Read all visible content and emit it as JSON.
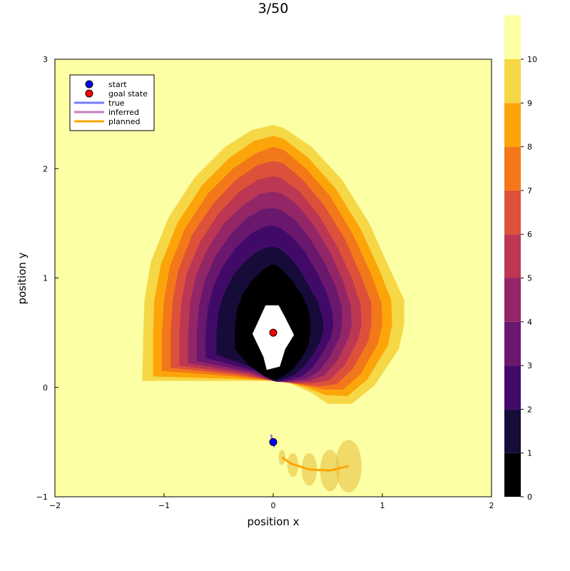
{
  "chart_data": {
    "type": "contour",
    "title": "3/50",
    "xlabel": "position x",
    "ylabel": "position y",
    "xlim": [
      -2,
      2
    ],
    "ylim": [
      -1,
      3
    ],
    "x_ticks": [
      -2,
      -1,
      0,
      1,
      2
    ],
    "y_ticks": [
      -1,
      0,
      1,
      2,
      3
    ],
    "x_tick_labels": [
      "−2",
      "−1",
      "0",
      "1",
      "2"
    ],
    "y_tick_labels": [
      "−1",
      "0",
      "1",
      "2",
      "3"
    ],
    "grid": false,
    "legend_position": "top-left",
    "legend": [
      {
        "label": "start",
        "kind": "marker",
        "color": "#0000ff"
      },
      {
        "label": "goal state",
        "kind": "marker",
        "color": "#ff0000"
      },
      {
        "label": "true",
        "kind": "line",
        "color": "#7a7aff"
      },
      {
        "label": "inferred",
        "kind": "line",
        "color": "#c080c0"
      },
      {
        "label": "planned",
        "kind": "line",
        "color": "#ffa500"
      }
    ],
    "colorbar": {
      "range": [
        0,
        10
      ],
      "ticks": [
        0,
        1,
        2,
        3,
        4,
        5,
        6,
        7,
        8,
        9,
        10
      ],
      "colors": [
        "#000000",
        "#160b39",
        "#420a68",
        "#6a176e",
        "#932667",
        "#bc3754",
        "#dd513a",
        "#f37819",
        "#fca50a",
        "#f6d746",
        "#fcffa4"
      ]
    },
    "start": {
      "x": 0.0,
      "y": -0.5
    },
    "goal_state": {
      "x": 0.0,
      "y": 0.5
    },
    "true_path": [
      {
        "x": -0.02,
        "y": -0.44
      },
      {
        "x": 0.0,
        "y": -0.5
      },
      {
        "x": 0.01,
        "y": -0.55
      }
    ],
    "inferred_path": [
      {
        "x": -0.02,
        "y": -0.43
      },
      {
        "x": -0.01,
        "y": -0.48
      },
      {
        "x": 0.0,
        "y": -0.53
      }
    ],
    "planned_path": [
      {
        "x": 0.08,
        "y": -0.64
      },
      {
        "x": 0.17,
        "y": -0.7
      },
      {
        "x": 0.33,
        "y": -0.75
      },
      {
        "x": 0.52,
        "y": -0.76
      },
      {
        "x": 0.69,
        "y": -0.72
      }
    ],
    "uncertainty_ellipses": [
      {
        "x": 0.08,
        "y": -0.64,
        "rx": 0.03,
        "ry": 0.07
      },
      {
        "x": 0.18,
        "y": -0.71,
        "rx": 0.05,
        "ry": 0.11
      },
      {
        "x": 0.33,
        "y": -0.75,
        "rx": 0.07,
        "ry": 0.15
      },
      {
        "x": 0.52,
        "y": -0.76,
        "rx": 0.09,
        "ry": 0.19
      },
      {
        "x": 0.69,
        "y": -0.72,
        "rx": 0.12,
        "ry": 0.24
      }
    ],
    "contour_levels": [
      {
        "level": 9,
        "color": "#f6d746",
        "points": [
          [
            -1.2,
            0.06
          ],
          [
            -1.19,
            0.48
          ],
          [
            -1.18,
            0.8
          ],
          [
            -1.12,
            1.15
          ],
          [
            -0.96,
            1.55
          ],
          [
            -0.72,
            1.92
          ],
          [
            -0.44,
            2.2
          ],
          [
            -0.2,
            2.35
          ],
          [
            0.0,
            2.4
          ],
          [
            0.1,
            2.37
          ],
          [
            0.35,
            2.2
          ],
          [
            0.63,
            1.9
          ],
          [
            0.88,
            1.5
          ],
          [
            1.06,
            1.1
          ],
          [
            1.2,
            0.8
          ],
          [
            1.2,
            0.58
          ],
          [
            1.15,
            0.35
          ],
          [
            0.93,
            0.02
          ],
          [
            0.72,
            -0.15
          ],
          [
            0.5,
            -0.15
          ],
          [
            0.35,
            -0.05
          ],
          [
            0.15,
            0.04
          ],
          [
            0.0,
            0.06
          ],
          [
            -0.5,
            0.06
          ]
        ]
      },
      {
        "level": 8,
        "color": "#fca50a",
        "points": [
          [
            -1.1,
            0.1
          ],
          [
            -1.1,
            0.5
          ],
          [
            -1.09,
            0.8
          ],
          [
            -1.03,
            1.12
          ],
          [
            -0.88,
            1.5
          ],
          [
            -0.65,
            1.85
          ],
          [
            -0.4,
            2.1
          ],
          [
            -0.18,
            2.25
          ],
          [
            0.0,
            2.3
          ],
          [
            0.1,
            2.27
          ],
          [
            0.32,
            2.1
          ],
          [
            0.57,
            1.82
          ],
          [
            0.8,
            1.45
          ],
          [
            0.97,
            1.08
          ],
          [
            1.08,
            0.8
          ],
          [
            1.09,
            0.58
          ],
          [
            1.05,
            0.38
          ],
          [
            0.86,
            0.07
          ],
          [
            0.68,
            -0.08
          ],
          [
            0.48,
            -0.07
          ],
          [
            0.3,
            0.0
          ],
          [
            0.12,
            0.05
          ],
          [
            0.0,
            0.06
          ],
          [
            -0.4,
            0.08
          ]
        ]
      },
      {
        "level": 7,
        "color": "#f37819",
        "points": [
          [
            -1.02,
            0.15
          ],
          [
            -1.02,
            0.5
          ],
          [
            -1.0,
            0.8
          ],
          [
            -0.95,
            1.1
          ],
          [
            -0.81,
            1.45
          ],
          [
            -0.6,
            1.77
          ],
          [
            -0.37,
            2.0
          ],
          [
            -0.16,
            2.14
          ],
          [
            0.0,
            2.2
          ],
          [
            0.1,
            2.17
          ],
          [
            0.3,
            2.0
          ],
          [
            0.52,
            1.75
          ],
          [
            0.73,
            1.4
          ],
          [
            0.89,
            1.05
          ],
          [
            0.99,
            0.78
          ],
          [
            1.0,
            0.58
          ],
          [
            0.96,
            0.4
          ],
          [
            0.8,
            0.12
          ],
          [
            0.64,
            -0.02
          ],
          [
            0.46,
            -0.02
          ],
          [
            0.28,
            0.02
          ],
          [
            0.1,
            0.05
          ],
          [
            0.0,
            0.06
          ],
          [
            -0.35,
            0.1
          ]
        ]
      },
      {
        "level": 6,
        "color": "#dd513a",
        "points": [
          [
            -0.94,
            0.18
          ],
          [
            -0.94,
            0.5
          ],
          [
            -0.92,
            0.8
          ],
          [
            -0.87,
            1.07
          ],
          [
            -0.74,
            1.4
          ],
          [
            -0.55,
            1.68
          ],
          [
            -0.34,
            1.9
          ],
          [
            -0.15,
            2.03
          ],
          [
            0.0,
            2.07
          ],
          [
            0.09,
            2.05
          ],
          [
            0.27,
            1.9
          ],
          [
            0.47,
            1.66
          ],
          [
            0.66,
            1.35
          ],
          [
            0.8,
            1.03
          ],
          [
            0.9,
            0.77
          ],
          [
            0.9,
            0.58
          ],
          [
            0.87,
            0.42
          ],
          [
            0.73,
            0.17
          ],
          [
            0.58,
            0.03
          ],
          [
            0.42,
            0.01
          ],
          [
            0.25,
            0.03
          ],
          [
            0.08,
            0.05
          ],
          [
            0.0,
            0.06
          ],
          [
            -0.3,
            0.11
          ]
        ]
      },
      {
        "level": 5,
        "color": "#bc3754",
        "points": [
          [
            -0.86,
            0.2
          ],
          [
            -0.86,
            0.5
          ],
          [
            -0.84,
            0.8
          ],
          [
            -0.79,
            1.05
          ],
          [
            -0.67,
            1.33
          ],
          [
            -0.5,
            1.59
          ],
          [
            -0.31,
            1.79
          ],
          [
            -0.14,
            1.9
          ],
          [
            0.0,
            1.93
          ],
          [
            0.08,
            1.91
          ],
          [
            0.24,
            1.79
          ],
          [
            0.42,
            1.57
          ],
          [
            0.59,
            1.28
          ],
          [
            0.72,
            1.0
          ],
          [
            0.8,
            0.76
          ],
          [
            0.81,
            0.58
          ],
          [
            0.78,
            0.44
          ],
          [
            0.66,
            0.21
          ],
          [
            0.52,
            0.07
          ],
          [
            0.38,
            0.04
          ],
          [
            0.22,
            0.04
          ],
          [
            0.07,
            0.05
          ],
          [
            0.0,
            0.06
          ],
          [
            -0.26,
            0.12
          ]
        ]
      },
      {
        "level": 4,
        "color": "#932667",
        "points": [
          [
            -0.78,
            0.22
          ],
          [
            -0.78,
            0.5
          ],
          [
            -0.76,
            0.78
          ],
          [
            -0.71,
            1.02
          ],
          [
            -0.6,
            1.27
          ],
          [
            -0.45,
            1.5
          ],
          [
            -0.27,
            1.67
          ],
          [
            -0.12,
            1.77
          ],
          [
            0.0,
            1.79
          ],
          [
            0.08,
            1.77
          ],
          [
            0.22,
            1.67
          ],
          [
            0.38,
            1.47
          ],
          [
            0.53,
            1.22
          ],
          [
            0.64,
            0.97
          ],
          [
            0.71,
            0.75
          ],
          [
            0.72,
            0.58
          ],
          [
            0.69,
            0.45
          ],
          [
            0.59,
            0.25
          ],
          [
            0.47,
            0.11
          ],
          [
            0.34,
            0.06
          ],
          [
            0.2,
            0.05
          ],
          [
            0.06,
            0.05
          ],
          [
            0.0,
            0.06
          ],
          [
            -0.22,
            0.13
          ]
        ]
      },
      {
        "level": 3,
        "color": "#6a176e",
        "points": [
          [
            -0.7,
            0.24
          ],
          [
            -0.7,
            0.5
          ],
          [
            -0.68,
            0.75
          ],
          [
            -0.63,
            0.97
          ],
          [
            -0.53,
            1.2
          ],
          [
            -0.39,
            1.4
          ],
          [
            -0.24,
            1.55
          ],
          [
            -0.1,
            1.63
          ],
          [
            0.0,
            1.64
          ],
          [
            0.07,
            1.62
          ],
          [
            0.2,
            1.53
          ],
          [
            0.33,
            1.37
          ],
          [
            0.47,
            1.14
          ],
          [
            0.57,
            0.93
          ],
          [
            0.63,
            0.73
          ],
          [
            0.63,
            0.58
          ],
          [
            0.61,
            0.46
          ],
          [
            0.52,
            0.28
          ],
          [
            0.42,
            0.15
          ],
          [
            0.3,
            0.08
          ],
          [
            0.17,
            0.06
          ],
          [
            0.05,
            0.05
          ],
          [
            0.0,
            0.06
          ],
          [
            -0.19,
            0.14
          ]
        ]
      },
      {
        "level": 2,
        "color": "#420a68",
        "points": [
          [
            -0.62,
            0.27
          ],
          [
            -0.62,
            0.5
          ],
          [
            -0.6,
            0.72
          ],
          [
            -0.55,
            0.92
          ],
          [
            -0.46,
            1.11
          ],
          [
            -0.34,
            1.28
          ],
          [
            -0.2,
            1.41
          ],
          [
            -0.08,
            1.47
          ],
          [
            0.0,
            1.48
          ],
          [
            0.06,
            1.46
          ],
          [
            0.17,
            1.38
          ],
          [
            0.29,
            1.24
          ],
          [
            0.4,
            1.05
          ],
          [
            0.49,
            0.87
          ],
          [
            0.54,
            0.7
          ],
          [
            0.55,
            0.57
          ],
          [
            0.53,
            0.46
          ],
          [
            0.45,
            0.31
          ],
          [
            0.36,
            0.18
          ],
          [
            0.26,
            0.1
          ],
          [
            0.15,
            0.07
          ],
          [
            0.04,
            0.05
          ],
          [
            0.0,
            0.06
          ],
          [
            -0.16,
            0.15
          ]
        ]
      },
      {
        "level": 1,
        "color": "#160b39",
        "points": [
          [
            -0.52,
            0.3
          ],
          [
            -0.52,
            0.5
          ],
          [
            -0.5,
            0.7
          ],
          [
            -0.45,
            0.86
          ],
          [
            -0.37,
            1.02
          ],
          [
            -0.27,
            1.14
          ],
          [
            -0.15,
            1.24
          ],
          [
            -0.06,
            1.28
          ],
          [
            0.0,
            1.29
          ],
          [
            0.05,
            1.27
          ],
          [
            0.14,
            1.2
          ],
          [
            0.24,
            1.08
          ],
          [
            0.33,
            0.92
          ],
          [
            0.41,
            0.78
          ],
          [
            0.45,
            0.64
          ],
          [
            0.46,
            0.53
          ],
          [
            0.44,
            0.44
          ],
          [
            0.37,
            0.31
          ],
          [
            0.29,
            0.2
          ],
          [
            0.2,
            0.12
          ],
          [
            0.11,
            0.08
          ],
          [
            0.03,
            0.06
          ],
          [
            0.0,
            0.06
          ],
          [
            -0.13,
            0.16
          ]
        ]
      },
      {
        "level": 0,
        "color": "#000000",
        "points": [
          [
            -0.35,
            0.35
          ],
          [
            -0.35,
            0.55
          ],
          [
            -0.33,
            0.72
          ],
          [
            -0.28,
            0.85
          ],
          [
            -0.2,
            0.97
          ],
          [
            -0.1,
            1.07
          ],
          [
            -0.02,
            1.12
          ],
          [
            0.02,
            1.12
          ],
          [
            0.08,
            1.08
          ],
          [
            0.17,
            0.98
          ],
          [
            0.26,
            0.85
          ],
          [
            0.32,
            0.72
          ],
          [
            0.34,
            0.6
          ],
          [
            0.34,
            0.5
          ],
          [
            0.32,
            0.38
          ],
          [
            0.26,
            0.27
          ],
          [
            0.19,
            0.18
          ],
          [
            0.12,
            0.12
          ],
          [
            0.05,
            0.08
          ],
          [
            0.0,
            0.07
          ],
          [
            -0.08,
            0.1
          ],
          [
            -0.22,
            0.2
          ]
        ]
      },
      {
        "level": 10,
        "color": "#ffffff",
        "points": [
          [
            -0.19,
            0.49
          ],
          [
            -0.13,
            0.62
          ],
          [
            -0.07,
            0.75
          ],
          [
            0.05,
            0.75
          ],
          [
            0.11,
            0.64
          ],
          [
            0.19,
            0.48
          ],
          [
            0.11,
            0.35
          ],
          [
            0.06,
            0.19
          ],
          [
            -0.06,
            0.16
          ],
          [
            -0.09,
            0.28
          ]
        ]
      }
    ]
  }
}
